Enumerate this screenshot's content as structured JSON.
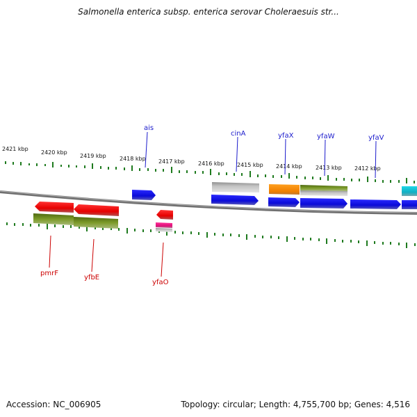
{
  "title": "Salmonella enterica subsp. enterica serovar Choleraesuis str...",
  "footer": {
    "accession": "Accession: NC_006905",
    "stats": "Topology: circular; Length: 4,755,700 bp; Genes: 4,516"
  },
  "colors": {
    "forward_label": "#1a1acc",
    "reverse_label": "#cc0000",
    "tick": "#1e7a1e",
    "backbone": "#777777",
    "blue": "#1010e8",
    "red": "#ee0000",
    "olive": "#6f8c1e",
    "gray": "#b8b8b8",
    "orange": "#ff8c00",
    "pink": "#ee1188",
    "cyan": "#11b5c8"
  },
  "kbp_labels": [
    "2421 kbp",
    "2420 kbp",
    "2419 kbp",
    "2418 kbp",
    "2417 kbp",
    "2416 kbp",
    "2415 kbp",
    "2414 kbp",
    "2413 kbp",
    "2412 kbp"
  ],
  "forward_gene_labels": [
    "ais",
    "cinA",
    "yfaX",
    "yfaW",
    "yfaV"
  ],
  "reverse_gene_labels": [
    "pmrF",
    "yfbE",
    "yfaO"
  ]
}
